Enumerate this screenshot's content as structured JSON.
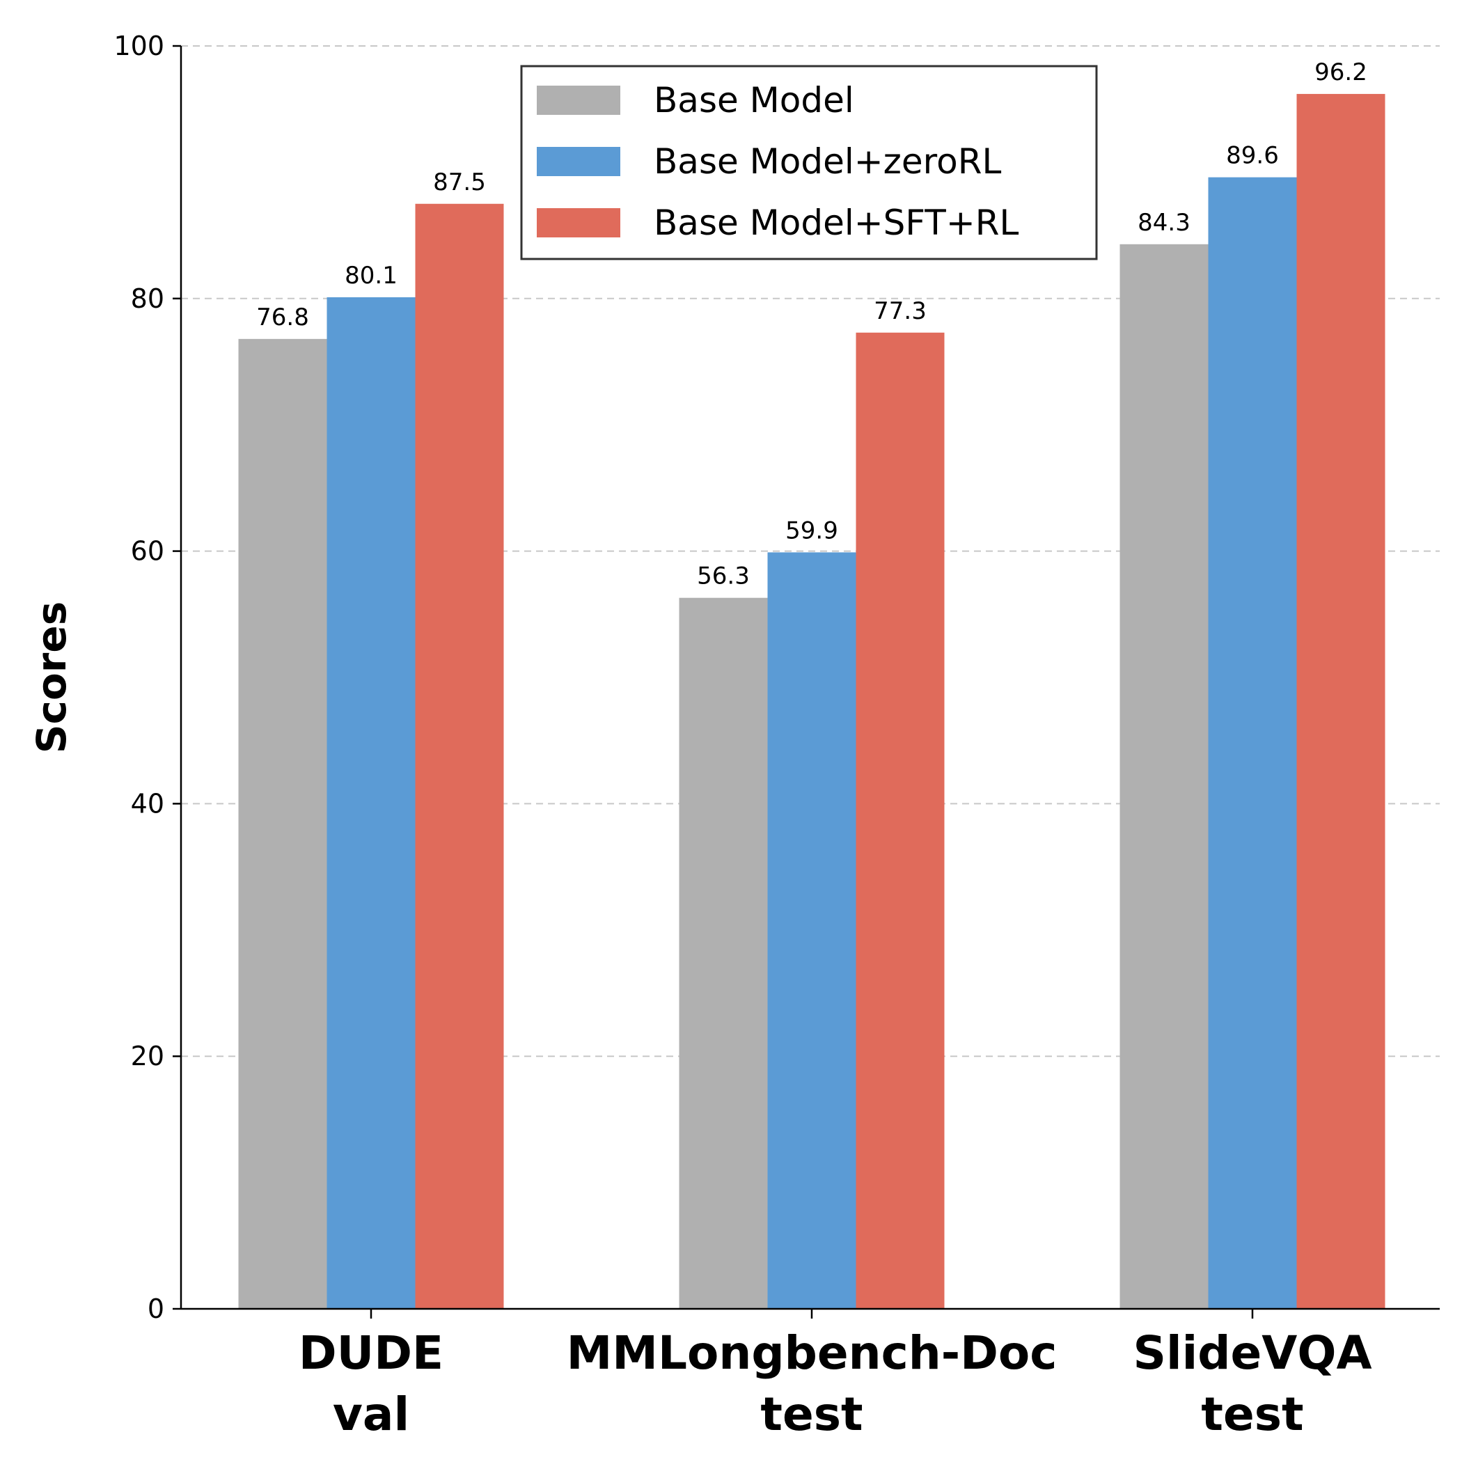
{
  "chart_data": {
    "type": "bar",
    "categories": [
      [
        "DUDE",
        "val"
      ],
      [
        "MMLongbench-Doc",
        "test"
      ],
      [
        "SlideVQA",
        "test"
      ]
    ],
    "series": [
      {
        "name": "Base Model",
        "color": "#b0b0b0",
        "values": [
          76.8,
          56.3,
          84.3
        ],
        "labels": [
          "76.8",
          "56.3",
          "84.3"
        ]
      },
      {
        "name": "Base Model+zeroRL",
        "color": "#5b9bd5",
        "values": [
          80.1,
          59.9,
          89.6
        ],
        "labels": [
          "80.1",
          "59.9",
          "89.6"
        ]
      },
      {
        "name": "Base Model+SFT+RL",
        "color": "#e06b5b",
        "values": [
          87.5,
          77.3,
          96.2
        ],
        "labels": [
          "87.5",
          "77.3",
          "96.2"
        ]
      }
    ],
    "ylabel": "Scores",
    "xlabel": "",
    "ylim": [
      0,
      100
    ],
    "yticks": [
      0,
      20,
      40,
      60,
      80,
      100
    ],
    "grid": "y-dashed",
    "legend_position": "top-center"
  }
}
